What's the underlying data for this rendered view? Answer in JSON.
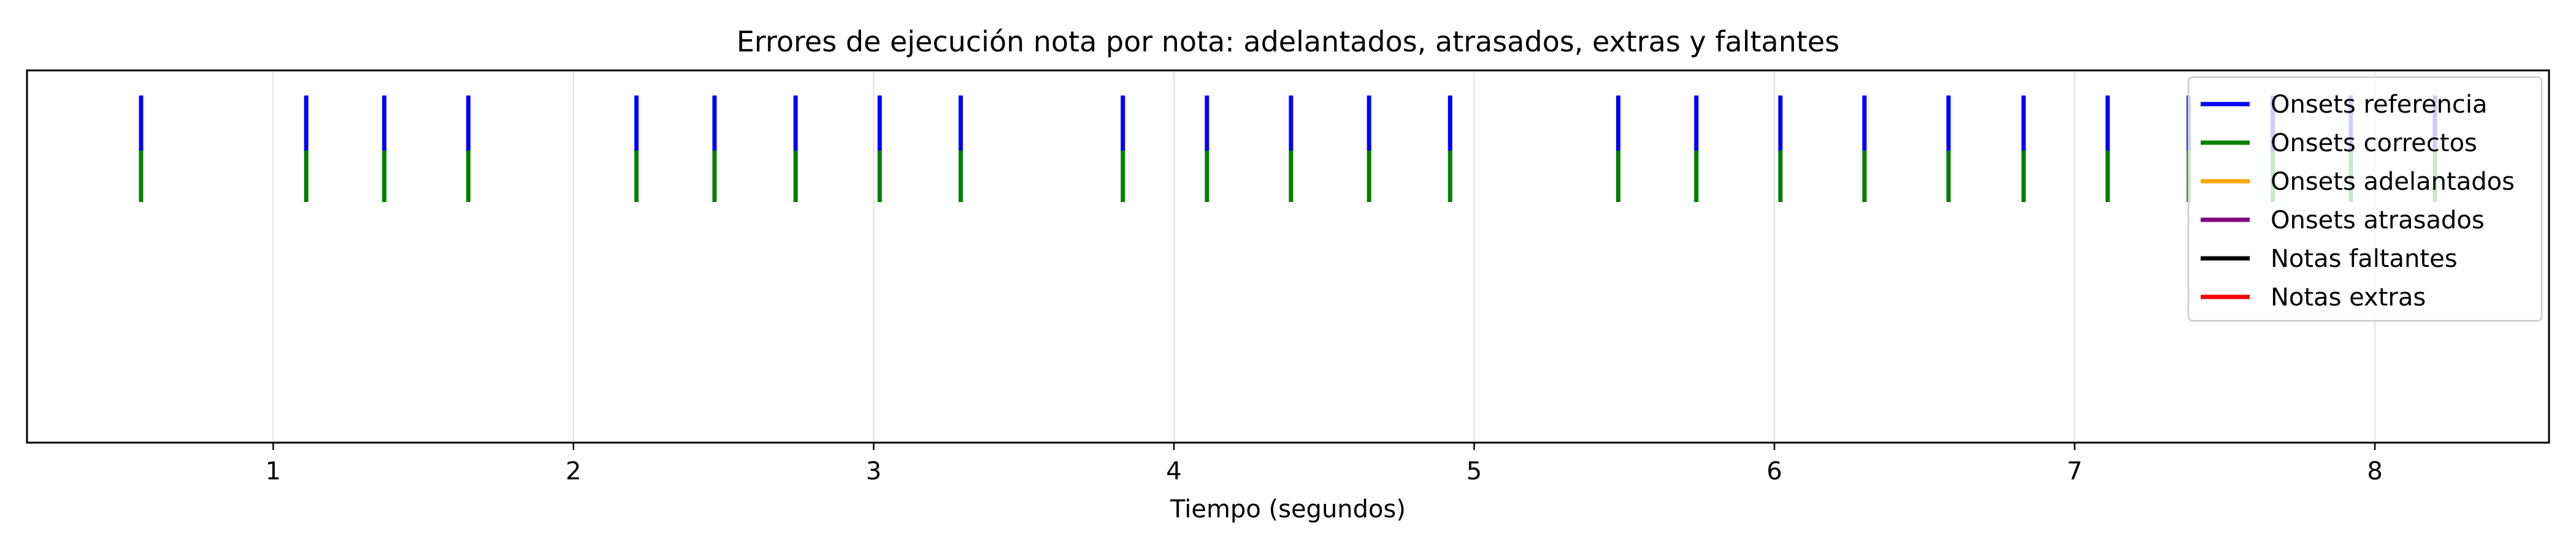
{
  "chart_data": {
    "type": "event",
    "title": "Errores de ejecución nota por nota: adelantados, atrasados, extras y faltantes",
    "xlabel": "Tiempo (segundos)",
    "ylabel": "",
    "xlim": [
      0.18,
      8.58
    ],
    "x_ticks": [
      1,
      2,
      3,
      4,
      5,
      6,
      7,
      8
    ],
    "x_tick_labels": [
      "1",
      "2",
      "3",
      "4",
      "5",
      "6",
      "7",
      "8"
    ],
    "y_ticks": [],
    "grid": "x-only",
    "legend_position": "top-right",
    "colors": {
      "reference": "#0000ff",
      "correct": "#008000",
      "early": "#ffa500",
      "late": "#800080",
      "missing": "#000000",
      "extra": "#ff0000",
      "grid": "#e6e6e6"
    },
    "series": [
      {
        "name": "Onsets referencia",
        "color": "#0000ff",
        "onsets": [
          0.56,
          1.11,
          1.37,
          1.65,
          2.21,
          2.47,
          2.74,
          3.02,
          3.29,
          3.83,
          4.11,
          4.39,
          4.65,
          4.92,
          5.48,
          5.74,
          6.02,
          6.3,
          6.58,
          6.83,
          7.11,
          7.38,
          7.66,
          7.92,
          8.2
        ]
      },
      {
        "name": "Onsets correctos",
        "color": "#008000",
        "onsets": [
          0.56,
          1.11,
          1.37,
          1.65,
          2.21,
          2.47,
          2.74,
          3.02,
          3.29,
          3.83,
          4.11,
          4.39,
          4.65,
          4.92,
          5.48,
          5.74,
          6.02,
          6.3,
          6.58,
          6.83,
          7.11,
          7.38,
          7.66,
          7.92,
          8.2
        ]
      },
      {
        "name": "Onsets adelantados",
        "color": "#ffa500",
        "onsets": []
      },
      {
        "name": "Onsets atrasados",
        "color": "#800080",
        "onsets": []
      },
      {
        "name": "Notas faltantes",
        "color": "#000000",
        "onsets": []
      },
      {
        "name": "Notas extras",
        "color": "#ff0000",
        "onsets": []
      }
    ]
  }
}
